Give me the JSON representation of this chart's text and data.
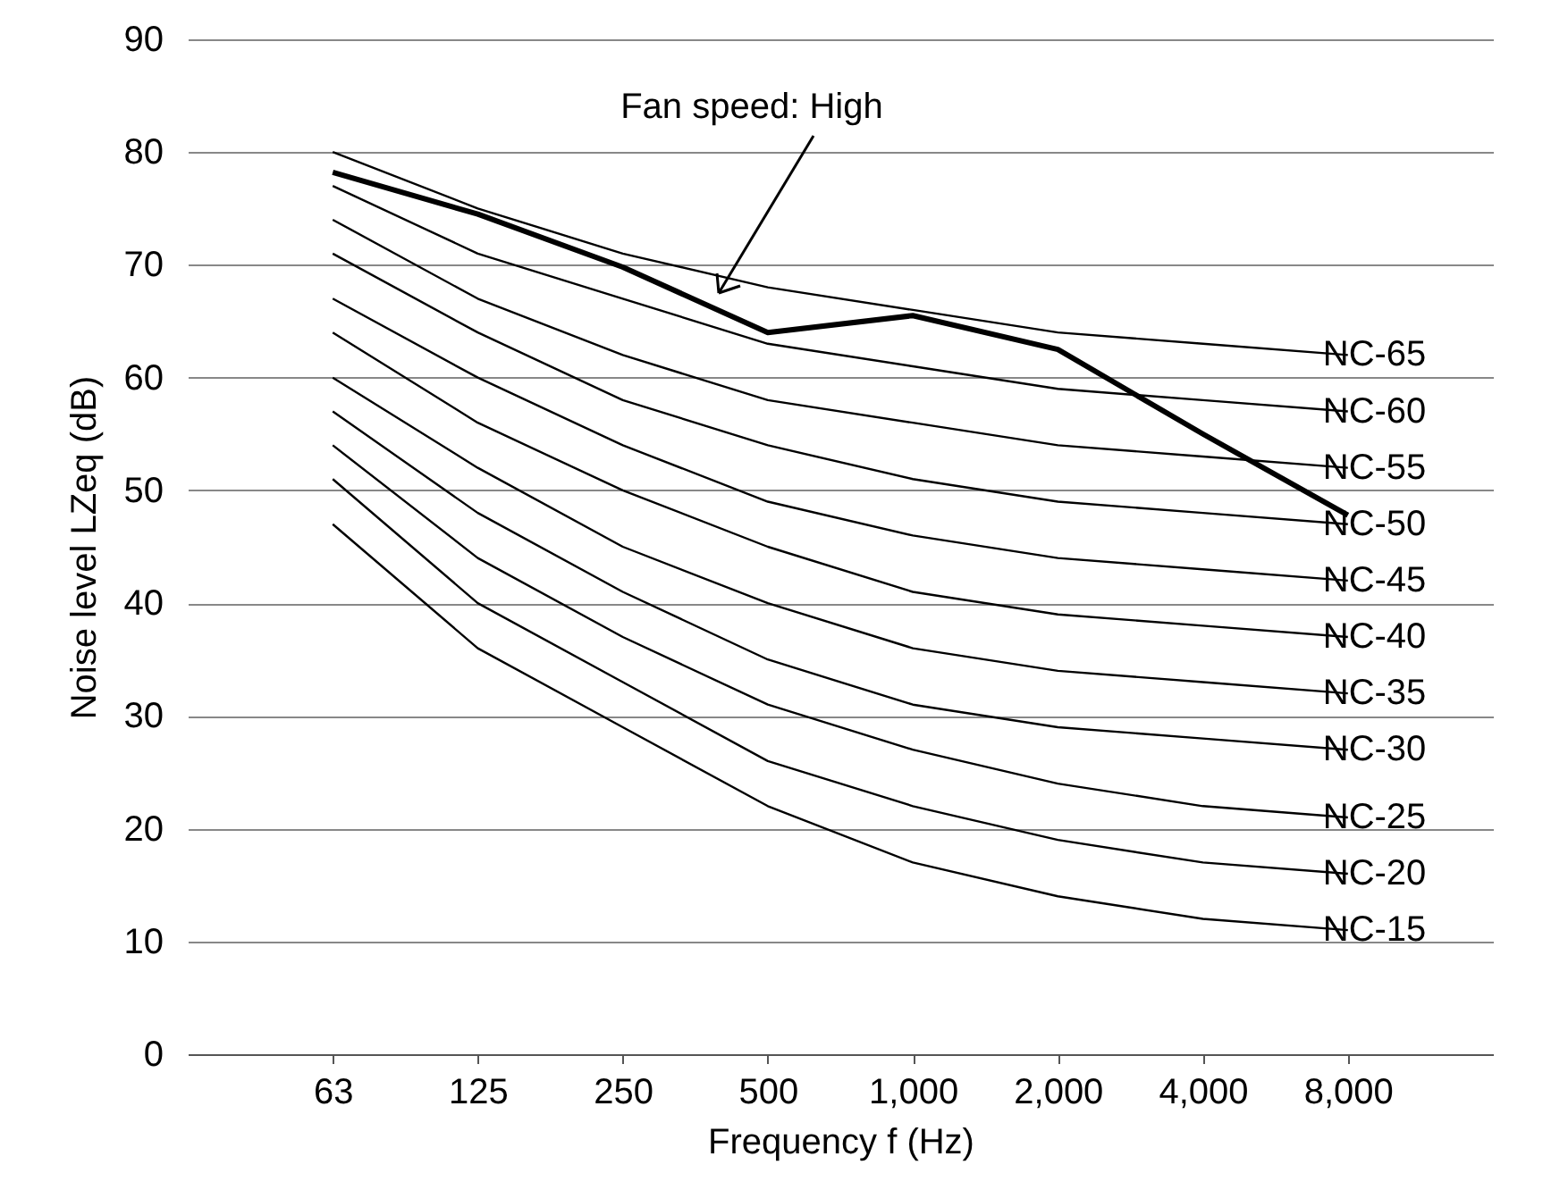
{
  "chart_data": {
    "type": "line",
    "xlabel": "Frequency f (Hz)",
    "ylabel": "Noise level LZeq (dB)",
    "categories": [
      "63",
      "125",
      "250",
      "500",
      "1,000",
      "2,000",
      "4,000",
      "8,000"
    ],
    "ylim": [
      0,
      90
    ],
    "yticks": [
      0,
      10,
      20,
      30,
      40,
      50,
      60,
      70,
      80,
      90
    ],
    "annotations": [
      "Fan speed: High"
    ],
    "grid": "y",
    "marker": "none",
    "line_style": "solid",
    "series": [
      {
        "name": "NC-65",
        "color": "#000000",
        "values": [
          80,
          75,
          71,
          68,
          66,
          64,
          63,
          62
        ]
      },
      {
        "name": "NC-60",
        "color": "#000000",
        "values": [
          77,
          71,
          67,
          63,
          61,
          59,
          58,
          57
        ]
      },
      {
        "name": "NC-55",
        "color": "#000000",
        "values": [
          74,
          67,
          62,
          58,
          56,
          54,
          53,
          52
        ]
      },
      {
        "name": "NC-50",
        "color": "#000000",
        "values": [
          71,
          64,
          58,
          54,
          51,
          49,
          48,
          47
        ]
      },
      {
        "name": "NC-45",
        "color": "#000000",
        "values": [
          67,
          60,
          54,
          49,
          46,
          44,
          43,
          42
        ]
      },
      {
        "name": "NC-40",
        "color": "#000000",
        "values": [
          64,
          56,
          50,
          45,
          41,
          39,
          38,
          37
        ]
      },
      {
        "name": "NC-35",
        "color": "#000000",
        "values": [
          60,
          52,
          45,
          40,
          36,
          34,
          33,
          32
        ]
      },
      {
        "name": "NC-30",
        "color": "#000000",
        "values": [
          57,
          48,
          41,
          35,
          31,
          29,
          28,
          27
        ]
      },
      {
        "name": "NC-25",
        "color": "#000000",
        "values": [
          54,
          44,
          37,
          31,
          27,
          24,
          22,
          21
        ]
      },
      {
        "name": "NC-20",
        "color": "#000000",
        "values": [
          51,
          40,
          33,
          26,
          22,
          19,
          17,
          16
        ]
      },
      {
        "name": "NC-15",
        "color": "#000000",
        "values": [
          47,
          36,
          29,
          22,
          17,
          14,
          12,
          11
        ]
      },
      {
        "color": "#000000",
        "values": [
          78.2,
          74.5,
          69.8,
          64,
          65.5,
          62.5,
          55,
          47.8
        ]
      }
    ]
  }
}
